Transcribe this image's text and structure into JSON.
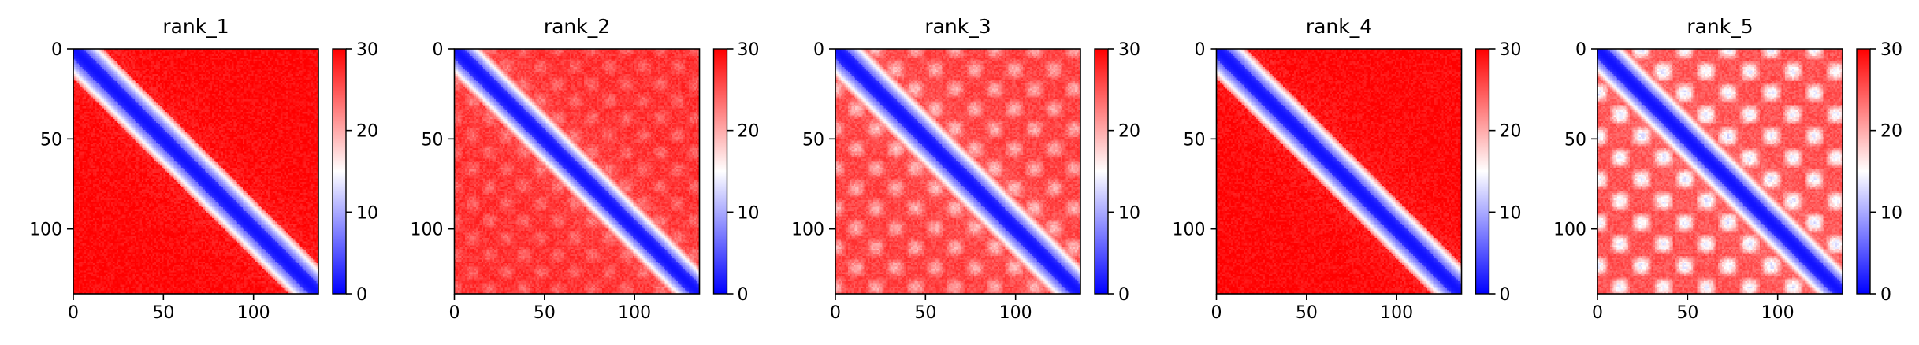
{
  "chart_data": [
    {
      "type": "heatmap",
      "title": "rank_1",
      "xlabel": "",
      "ylabel": "",
      "matrix_size": 136,
      "x_ticks": [
        0,
        50,
        100
      ],
      "y_ticks": [
        0,
        50,
        100
      ],
      "colorbar": {
        "range": [
          0,
          30
        ],
        "ticks": [
          0,
          10,
          20,
          30
        ],
        "colormap": [
          "#0000ff",
          "#ffffff",
          "#ff0000"
        ]
      },
      "pattern": {
        "diagonal_width": 6.5,
        "background_level": 29.5,
        "block_period": 0,
        "block_strength": 0
      }
    },
    {
      "type": "heatmap",
      "title": "rank_2",
      "xlabel": "",
      "ylabel": "",
      "matrix_size": 136,
      "x_ticks": [
        0,
        50,
        100
      ],
      "y_ticks": [
        0,
        50,
        100
      ],
      "colorbar": {
        "range": [
          0,
          30
        ],
        "ticks": [
          0,
          10,
          20,
          30
        ],
        "colormap": [
          "#0000ff",
          "#ffffff",
          "#ff0000"
        ]
      },
      "pattern": {
        "diagonal_width": 6,
        "background_level": 27,
        "block_period": 19,
        "block_strength": 3
      }
    },
    {
      "type": "heatmap",
      "title": "rank_3",
      "xlabel": "",
      "ylabel": "",
      "matrix_size": 136,
      "x_ticks": [
        0,
        50,
        100
      ],
      "y_ticks": [
        0,
        50,
        100
      ],
      "colorbar": {
        "range": [
          0,
          30
        ],
        "ticks": [
          0,
          10,
          20,
          30
        ],
        "colormap": [
          "#0000ff",
          "#ffffff",
          "#ff0000"
        ]
      },
      "pattern": {
        "diagonal_width": 6.5,
        "background_level": 26,
        "block_period": 22,
        "block_strength": 6
      }
    },
    {
      "type": "heatmap",
      "title": "rank_4",
      "xlabel": "",
      "ylabel": "",
      "matrix_size": 136,
      "x_ticks": [
        0,
        50,
        100
      ],
      "y_ticks": [
        0,
        50,
        100
      ],
      "colorbar": {
        "range": [
          0,
          30
        ],
        "ticks": [
          0,
          10,
          20,
          30
        ],
        "colormap": [
          "#0000ff",
          "#ffffff",
          "#ff0000"
        ]
      },
      "pattern": {
        "diagonal_width": 6.5,
        "background_level": 29.5,
        "block_period": 0,
        "block_strength": 0
      }
    },
    {
      "type": "heatmap",
      "title": "rank_5",
      "xlabel": "",
      "ylabel": "",
      "matrix_size": 136,
      "x_ticks": [
        0,
        50,
        100
      ],
      "y_ticks": [
        0,
        50,
        100
      ],
      "colorbar": {
        "range": [
          0,
          30
        ],
        "ticks": [
          0,
          10,
          20,
          30
        ],
        "colormap": [
          "#0000ff",
          "#ffffff",
          "#ff0000"
        ]
      },
      "pattern": {
        "diagonal_width": 6,
        "background_level": 25,
        "block_period": 24,
        "block_strength": 11
      }
    }
  ]
}
